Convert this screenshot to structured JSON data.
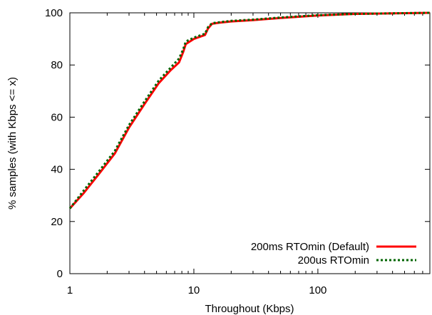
{
  "chart_data": {
    "type": "line",
    "title": "",
    "xlabel": "Throughout (Kbps)",
    "ylabel": "% samples (with Kbps <= x)",
    "xscale": "log",
    "xlim": [
      1,
      800
    ],
    "ylim": [
      0,
      100
    ],
    "xticks": [
      1,
      10,
      100
    ],
    "xtick_labels": [
      "1",
      "10",
      "100"
    ],
    "yticks": [
      0,
      20,
      40,
      60,
      80,
      100
    ],
    "ytick_labels": [
      "0",
      "20",
      "40",
      "60",
      "80",
      "100"
    ],
    "grid": false,
    "legend_position": "bottom-right",
    "series": [
      {
        "name": "200ms RTOmin (Default)",
        "color": "#ff0000",
        "line_style": "solid",
        "x": [
          1,
          1.3,
          1.7,
          2.3,
          3,
          4,
          5.2,
          6.5,
          7.6,
          8.2,
          8.6,
          10,
          12.3,
          13,
          14,
          16,
          20,
          30,
          50,
          100,
          200,
          400,
          800
        ],
        "y": [
          25,
          31,
          38,
          46,
          56,
          65,
          73,
          78,
          81,
          85,
          88,
          90,
          91.5,
          94,
          95.8,
          96.2,
          96.7,
          97.2,
          98,
          99,
          99.6,
          99.8,
          100
        ]
      },
      {
        "name": "200us RTOmin",
        "color": "#006400",
        "line_style": "dotted",
        "x": [
          1,
          1.3,
          1.7,
          2.3,
          3,
          4,
          5.2,
          6.5,
          7.6,
          8.2,
          8.6,
          10,
          12.3,
          13,
          14,
          16,
          20,
          30,
          50,
          100,
          200,
          400,
          800
        ],
        "y": [
          25,
          32,
          39,
          47,
          57,
          66,
          74,
          79,
          82.5,
          86,
          89,
          90.5,
          92,
          94.5,
          96,
          96.4,
          96.9,
          97.4,
          98.2,
          99.1,
          99.6,
          99.8,
          100
        ]
      }
    ]
  }
}
